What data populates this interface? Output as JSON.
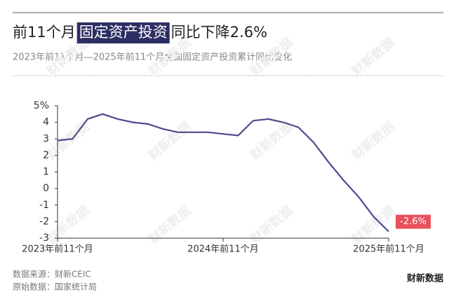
{
  "chart_data": {
    "type": "line",
    "title_parts": [
      "前11个月",
      "固定资产投资",
      "同比下降2.6%"
    ],
    "subtitle": "2023年前11个月—2025年前11个月全国固定资产投资累计同比变化",
    "categories": [
      "2023年前11个月",
      null,
      null,
      null,
      null,
      null,
      null,
      null,
      null,
      null,
      null,
      "2024年前11个月",
      null,
      null,
      null,
      null,
      null,
      null,
      null,
      null,
      null,
      null,
      "2025年前11个月"
    ],
    "series": [
      {
        "name": "固定资产投资累计同比",
        "color": "#4d4a8e",
        "values": [
          2.9,
          3.0,
          4.2,
          4.5,
          4.2,
          4.0,
          3.9,
          3.6,
          3.4,
          3.4,
          3.4,
          3.3,
          3.2,
          4.1,
          4.2,
          4.0,
          3.7,
          2.8,
          1.6,
          0.5,
          -0.5,
          -1.7,
          -2.6
        ],
        "value_labels": [
          null,
          null,
          null,
          null,
          null,
          null,
          null,
          null,
          null,
          null,
          null,
          null,
          null,
          null,
          null,
          null,
          null,
          null,
          null,
          null,
          null,
          null,
          "-2.6%"
        ]
      }
    ],
    "ylim": [
      -3,
      5
    ],
    "yticks": [
      -3,
      -2,
      -1,
      0,
      1,
      2,
      3,
      4,
      {
        "value": 5,
        "label": "5%"
      }
    ],
    "source": "数据来源：财新CEIC",
    "original_source": "原始数据：国家统计局",
    "logo": "财新数据",
    "watermark": "财新数据"
  }
}
